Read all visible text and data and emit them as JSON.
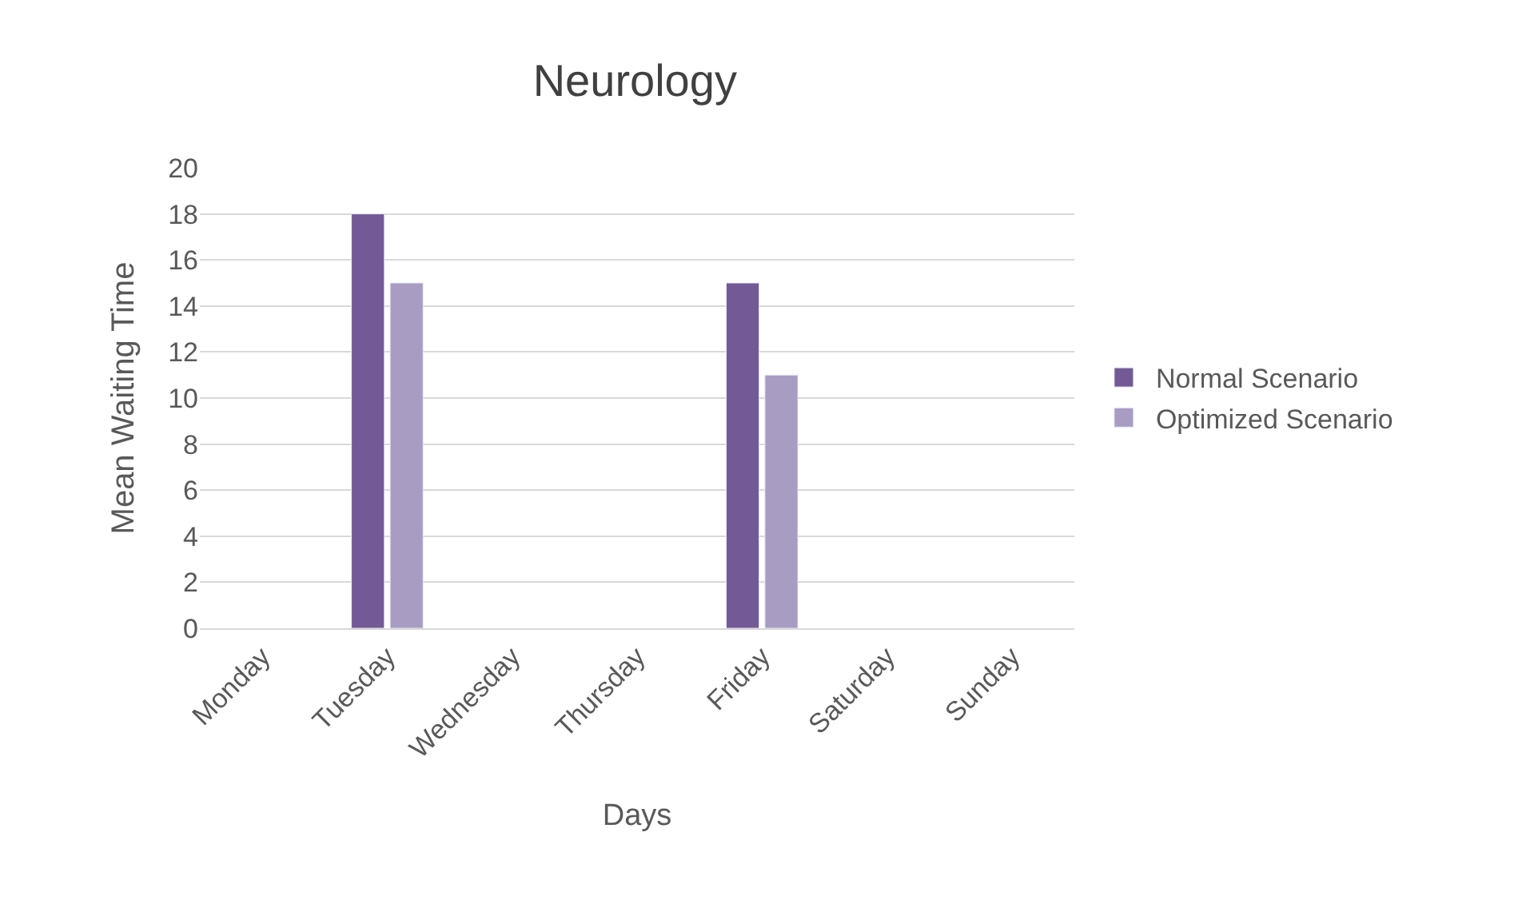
{
  "chart_data": {
    "type": "bar",
    "title": "Neurology",
    "xlabel": "Days",
    "ylabel": "Mean Waiting Time",
    "categories": [
      "Monday",
      "Tuesday",
      "Wednesday",
      "Thursday",
      "Friday",
      "Saturday",
      "Sunday"
    ],
    "series": [
      {
        "name": "Normal Scenario",
        "color": "#735a96",
        "values": [
          null,
          18,
          null,
          null,
          15,
          null,
          null
        ]
      },
      {
        "name": "Optimized Scenario",
        "color": "#a99cc2",
        "values": [
          null,
          15,
          null,
          null,
          11,
          null,
          null
        ]
      }
    ],
    "ylim": [
      0,
      20
    ],
    "yticks": [
      0,
      2,
      4,
      6,
      8,
      10,
      12,
      14,
      16,
      18,
      20
    ],
    "grid": "y",
    "legend": "right"
  }
}
